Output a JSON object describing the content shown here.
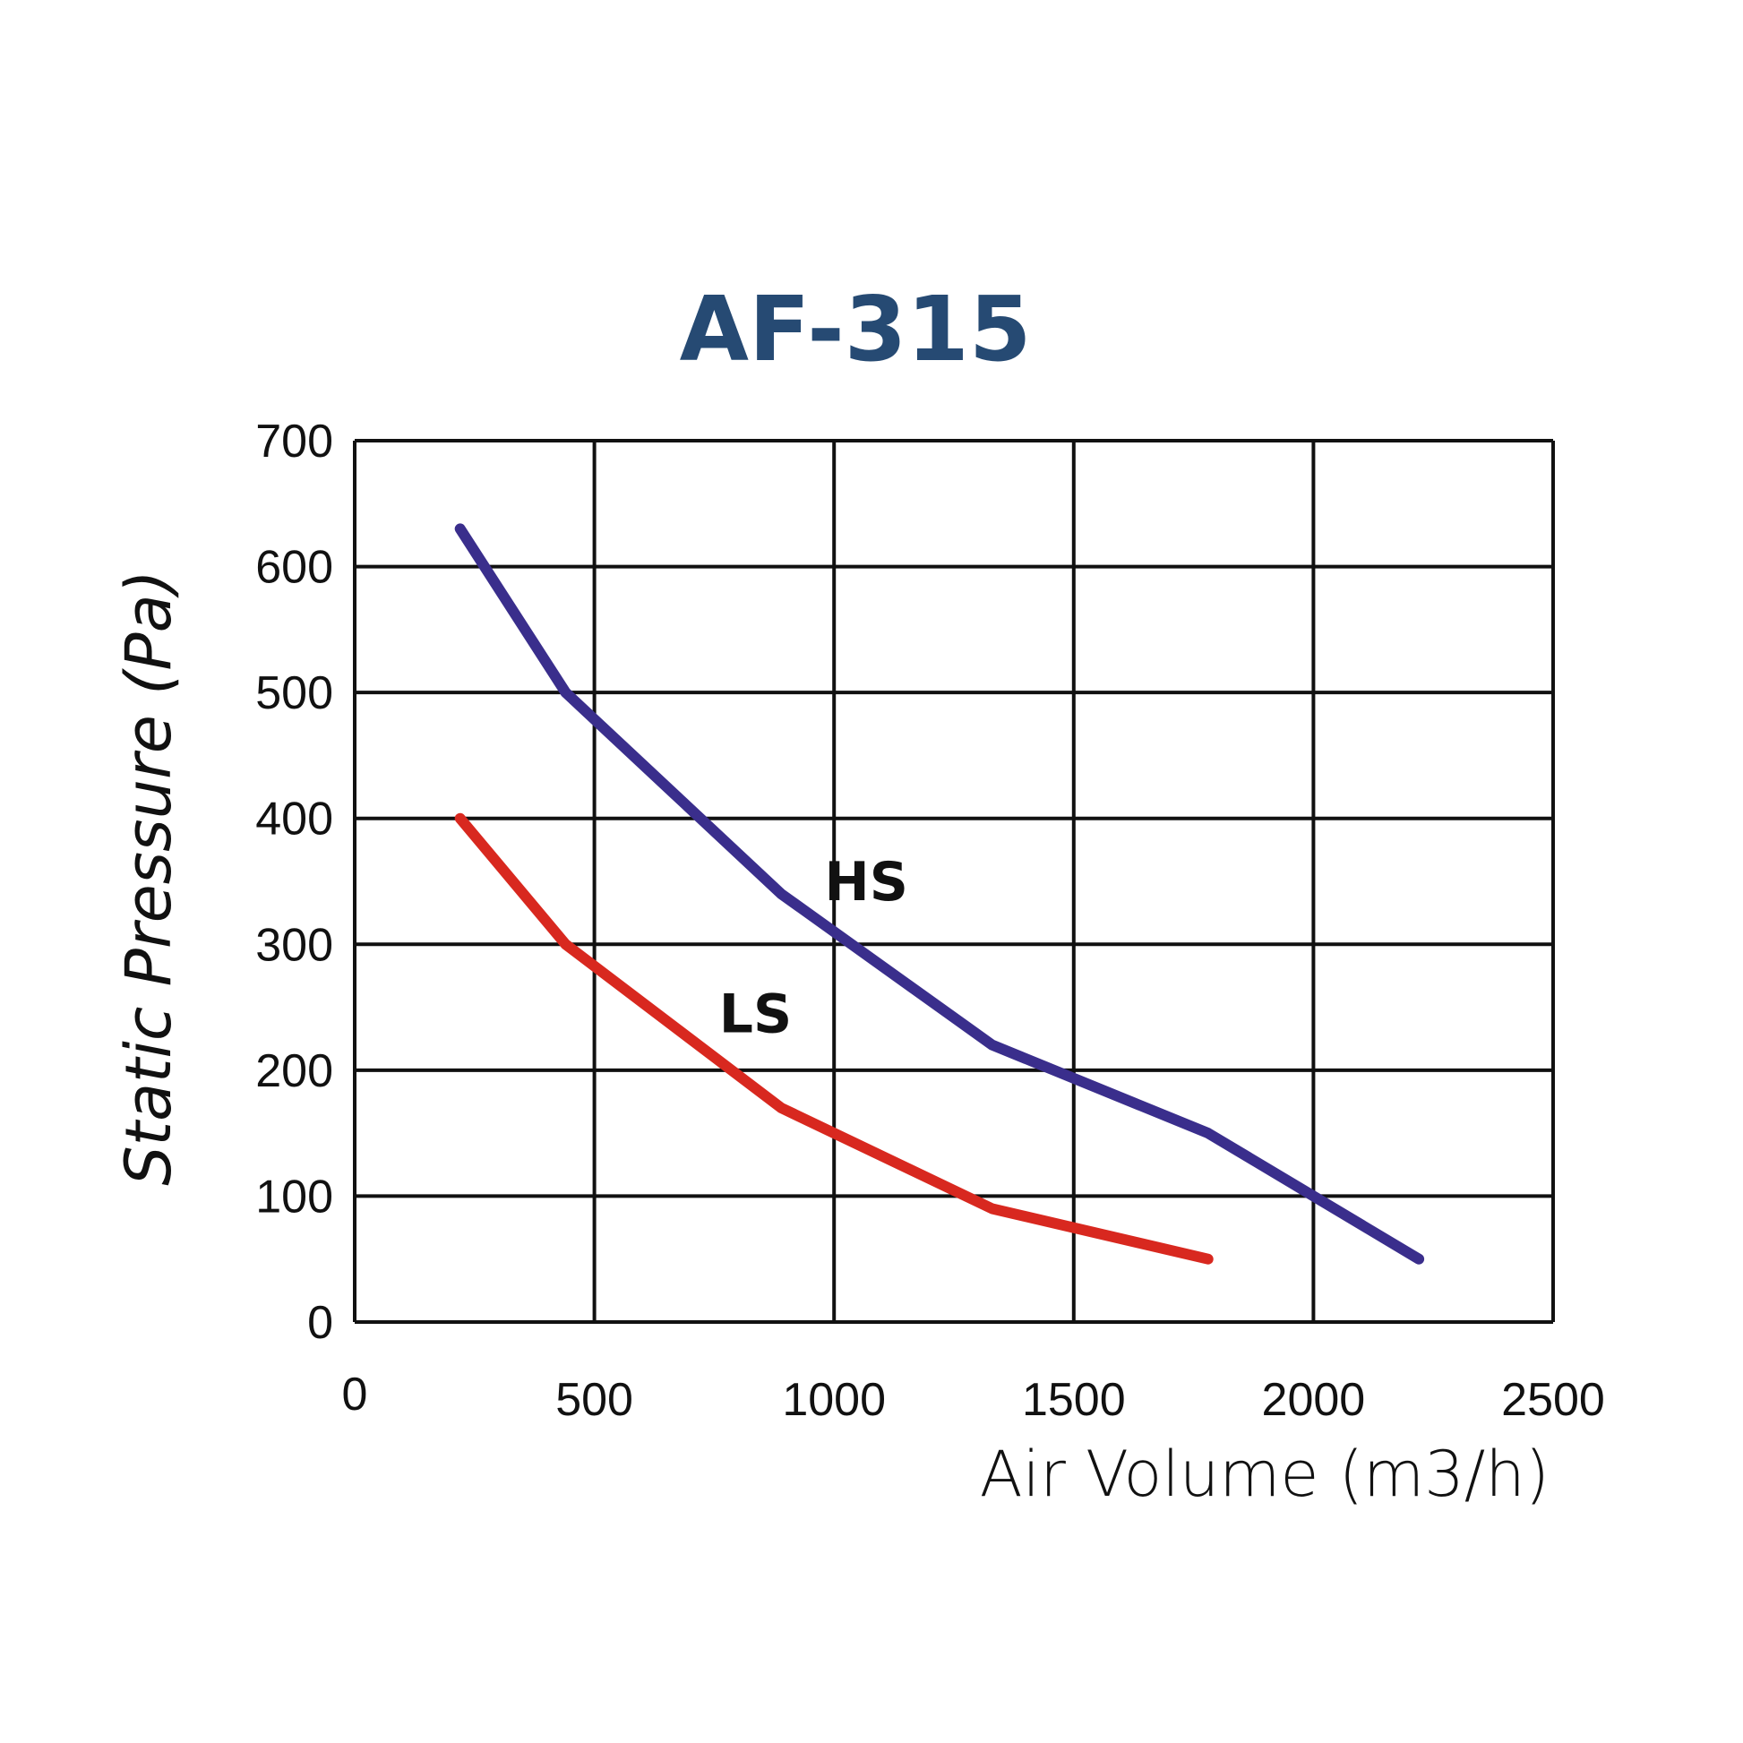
{
  "chart_data": {
    "type": "line",
    "title": "AF-315",
    "xlabel": "Air Volume (m3/h)",
    "ylabel": "Static Pressure (Pa)",
    "xlim": [
      0,
      2500
    ],
    "ylim": [
      0,
      700
    ],
    "x_ticks": [
      0,
      500,
      1000,
      1500,
      2000,
      2500
    ],
    "y_ticks": [
      0,
      100,
      200,
      300,
      400,
      500,
      600,
      700
    ],
    "x_tick_labels": [
      "0",
      "500",
      "1000",
      "1500",
      "2000",
      "2500"
    ],
    "y_tick_labels": [
      "0",
      "100",
      "200",
      "300",
      "400",
      "500",
      "600",
      "700"
    ],
    "grid": true,
    "series": [
      {
        "name": "HS",
        "color": "#3a2e8c",
        "x": [
          220,
          440,
          890,
          1330,
          1780,
          2220
        ],
        "y": [
          630,
          500,
          340,
          220,
          150,
          50
        ],
        "label_at": [
          980,
          335
        ]
      },
      {
        "name": "LS",
        "color": "#d8281f",
        "x": [
          220,
          440,
          890,
          1330,
          1780
        ],
        "y": [
          400,
          300,
          170,
          90,
          50
        ],
        "label_at": [
          760,
          230
        ]
      }
    ],
    "colors": {
      "title": "#264a73",
      "grid": "#111111",
      "axis_text": "#111111"
    }
  }
}
